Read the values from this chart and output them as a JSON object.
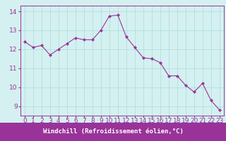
{
  "x": [
    0,
    1,
    2,
    3,
    4,
    5,
    6,
    7,
    8,
    9,
    10,
    11,
    12,
    13,
    14,
    15,
    16,
    17,
    18,
    19,
    20,
    21,
    22,
    23
  ],
  "y": [
    12.4,
    12.1,
    12.2,
    11.7,
    12.0,
    12.3,
    12.6,
    12.5,
    12.5,
    13.0,
    13.75,
    13.8,
    12.65,
    12.1,
    11.55,
    11.5,
    11.3,
    10.6,
    10.6,
    10.1,
    9.75,
    10.2,
    9.3,
    8.8
  ],
  "line_color": "#993399",
  "marker_color": "#993399",
  "bg_color": "#d4f0f0",
  "grid_color": "#aadddd",
  "xlabel": "Windchill (Refroidissement éolien,°C)",
  "ylabel": "",
  "ylim": [
    8.5,
    14.3
  ],
  "xlim": [
    -0.5,
    23.5
  ],
  "yticks": [
    9,
    10,
    11,
    12,
    13,
    14
  ],
  "xticks": [
    0,
    1,
    2,
    3,
    4,
    5,
    6,
    7,
    8,
    9,
    10,
    11,
    12,
    13,
    14,
    15,
    16,
    17,
    18,
    19,
    20,
    21,
    22,
    23
  ],
  "axis_color": "#993399",
  "tick_color": "#993399",
  "xlabel_color": "#ffffff",
  "xlabel_bg": "#993399",
  "font_size": 6.5,
  "tick_fontsize": 6.5
}
